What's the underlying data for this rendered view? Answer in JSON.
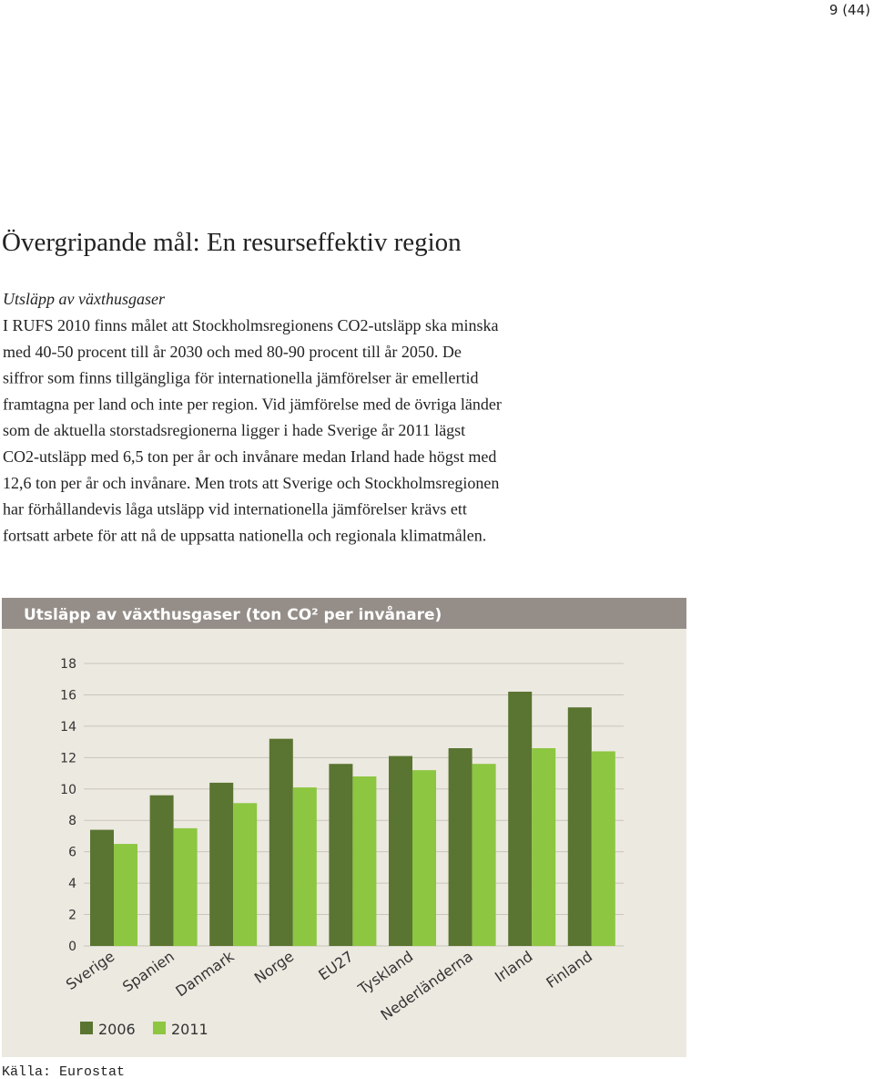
{
  "page_number": "9 (44)",
  "heading": "Övergripande mål: En resurseffektiv region",
  "subheading": "Utsläpp av växthusgaser",
  "paragraph_lines": [
    "I RUFS 2010 finns målet att Stockholmsregionens CO2-utsläpp ska minska",
    "med 40-50 procent till år 2030 och med 80-90 procent till år 2050. De",
    "siffror som finns tillgängliga för internationella jämförelser är emellertid",
    "framtagna per land och inte per region. Vid jämförelse med de övriga länder",
    "som de  aktuella storstadsregionerna ligger i hade Sverige år 2011 lägst",
    "CO2-utsläpp med 6,5 ton per år och invånare medan Irland hade högst med",
    "12,6 ton per år och invånare. Men trots att Sverige och Stockholmsregionen",
    "har förhållandevis låga utsläpp vid internationella jämförelser krävs ett",
    "fortsatt arbete för att nå de uppsatta nationella och regionala klimatmålen."
  ],
  "source": "Källa: Eurostat",
  "chart_data": {
    "type": "bar",
    "title": "Utsläpp av växthusgaser (ton CO² per invånare)",
    "categories": [
      "Sverige",
      "Spanien",
      "Danmark",
      "Norge",
      "EU27",
      "Tyskland",
      "Nederländerna",
      "Irland",
      "Finland"
    ],
    "series": [
      {
        "name": "2006",
        "color": "#5a7431",
        "values": [
          7.4,
          9.6,
          10.4,
          13.2,
          11.6,
          12.1,
          12.6,
          16.2,
          15.2
        ]
      },
      {
        "name": "2011",
        "color": "#8dc641",
        "values": [
          6.5,
          7.5,
          9.1,
          10.1,
          10.8,
          11.2,
          11.6,
          12.6,
          12.4
        ]
      }
    ],
    "ylim": [
      0,
      18
    ],
    "yticks": [
      0,
      2,
      4,
      6,
      8,
      10,
      12,
      14,
      16,
      18
    ],
    "grid": true
  }
}
